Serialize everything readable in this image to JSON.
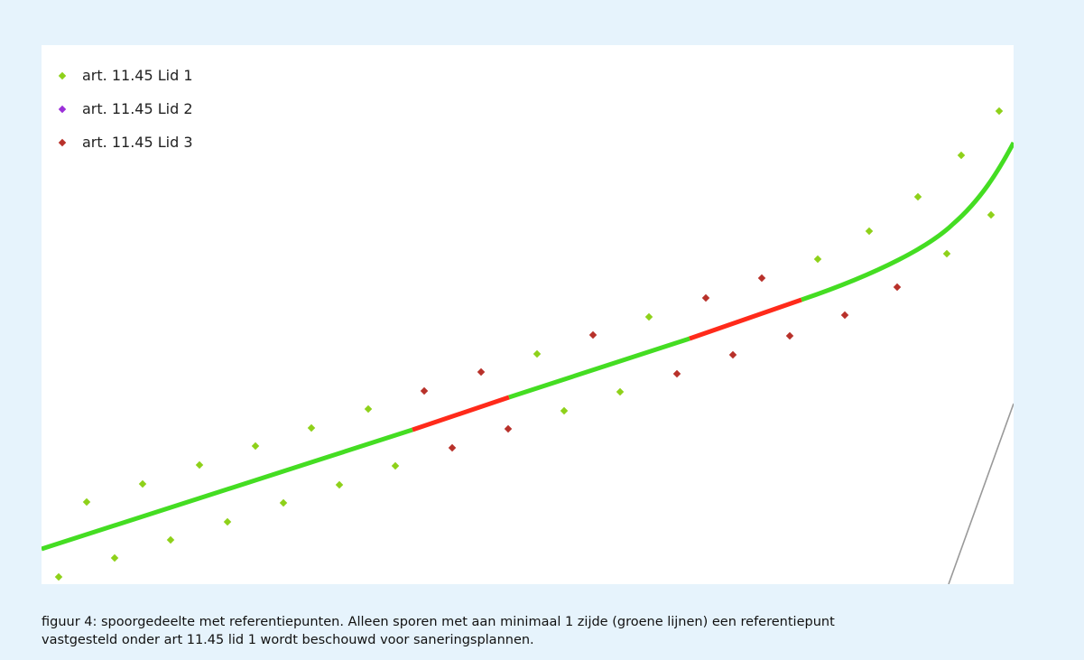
{
  "figure": {
    "legend": [
      {
        "label": "art. 11.45 Lid 1",
        "color": "#8ed11a"
      },
      {
        "label": "art. 11.45 Lid 2",
        "color": "#9b30d9"
      },
      {
        "label": "art. 11.45 Lid 3",
        "color": "#b8312a"
      }
    ],
    "track_colors": {
      "with_reference_point": "#44dd22",
      "without_reference_point": "#ff2a1a",
      "other_line": "#999999"
    }
  },
  "caption": {
    "line1": "figuur 4: spoorgedeelte met referentiepunten. Alleen sporen met aan minimaal 1 zijde (groene lijnen) een referentiepunt",
    "line2": "vastgesteld onder art 11.45 lid 1 wordt beschouwd voor saneringsplannen."
  }
}
